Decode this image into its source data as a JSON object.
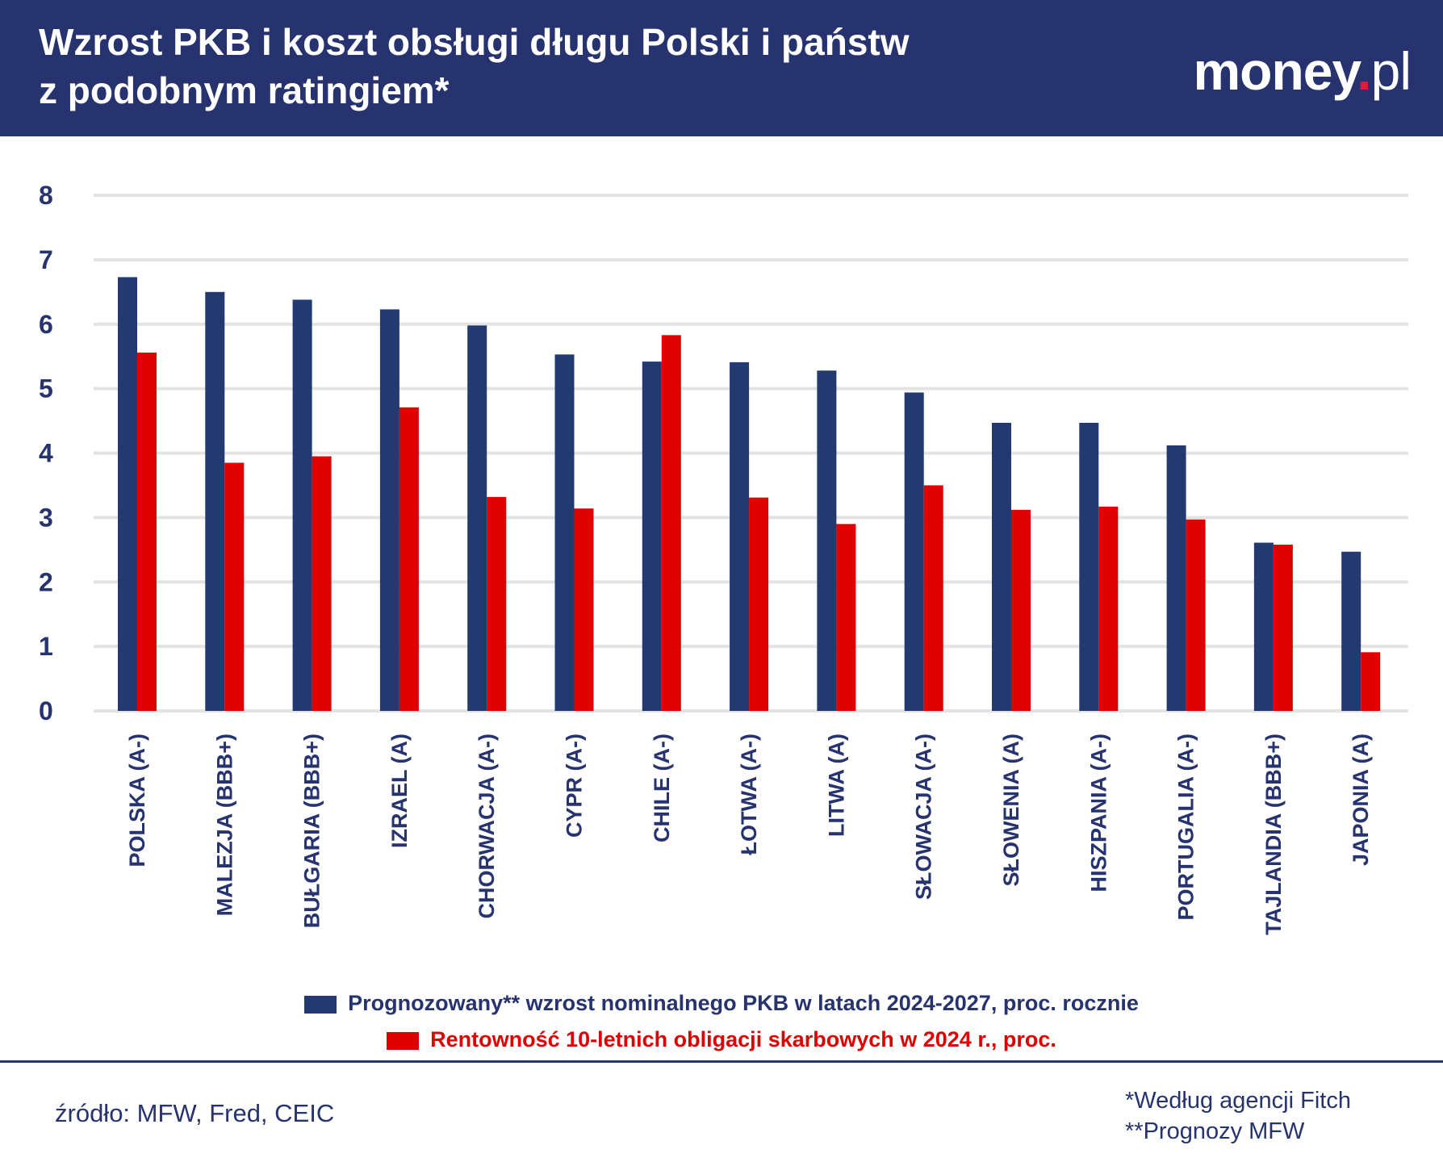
{
  "header": {
    "title_line1": "Wzrost PKB i koszt obsługi długu Polski i państw",
    "title_line2": "z podobnym ratingiem*",
    "logo": "money.pl"
  },
  "colors": {
    "header": "#26336e",
    "series_gdp": "#223a70",
    "series_yield": "#e00000",
    "grid": "#e3e3e3"
  },
  "chart_data": {
    "type": "bar",
    "categories": [
      "POLSKA (A-)",
      "MALEZJA (BBB+)",
      "BUŁGARIA (BBB+)",
      "IZRAEL (A)",
      "CHORWACJA (A-)",
      "CYPR (A-)",
      "CHILE (A-)",
      "ŁOTWA (A-)",
      "LITWA (A)",
      "SŁOWACJA (A-)",
      "SŁOWENIA (A)",
      "HISZPANIA (A-)",
      "PORTUGALIA (A-)",
      "TAJLANDIA (BBB+)",
      "JAPONIA (A)"
    ],
    "series": [
      {
        "name": "Prognozowany** wzrost nominalnego PKB w latach 2024-2027, proc. rocznie",
        "color": "#223a70",
        "values": [
          6.73,
          6.5,
          6.38,
          6.23,
          5.98,
          5.53,
          5.42,
          5.41,
          5.28,
          4.94,
          4.47,
          4.47,
          4.12,
          2.61,
          2.47
        ]
      },
      {
        "name": "Rentowność 10-letnich obligacji skarbowych w 2024 r., proc.",
        "color": "#e00000",
        "values": [
          5.56,
          3.85,
          3.95,
          4.71,
          3.32,
          3.14,
          5.83,
          3.31,
          2.9,
          3.5,
          3.12,
          3.17,
          2.97,
          2.58,
          0.91
        ]
      }
    ],
    "ylim": [
      0,
      8
    ],
    "yticks": [
      "0",
      "1",
      "2",
      "3",
      "4",
      "5",
      "6",
      "7",
      "8"
    ],
    "grid": true,
    "legend_position": "bottom"
  },
  "footer": {
    "source": "źródło: MFW, Fred, CEIC",
    "note1": "*Według agencji Fitch",
    "note2": "**Prognozy MFW"
  }
}
